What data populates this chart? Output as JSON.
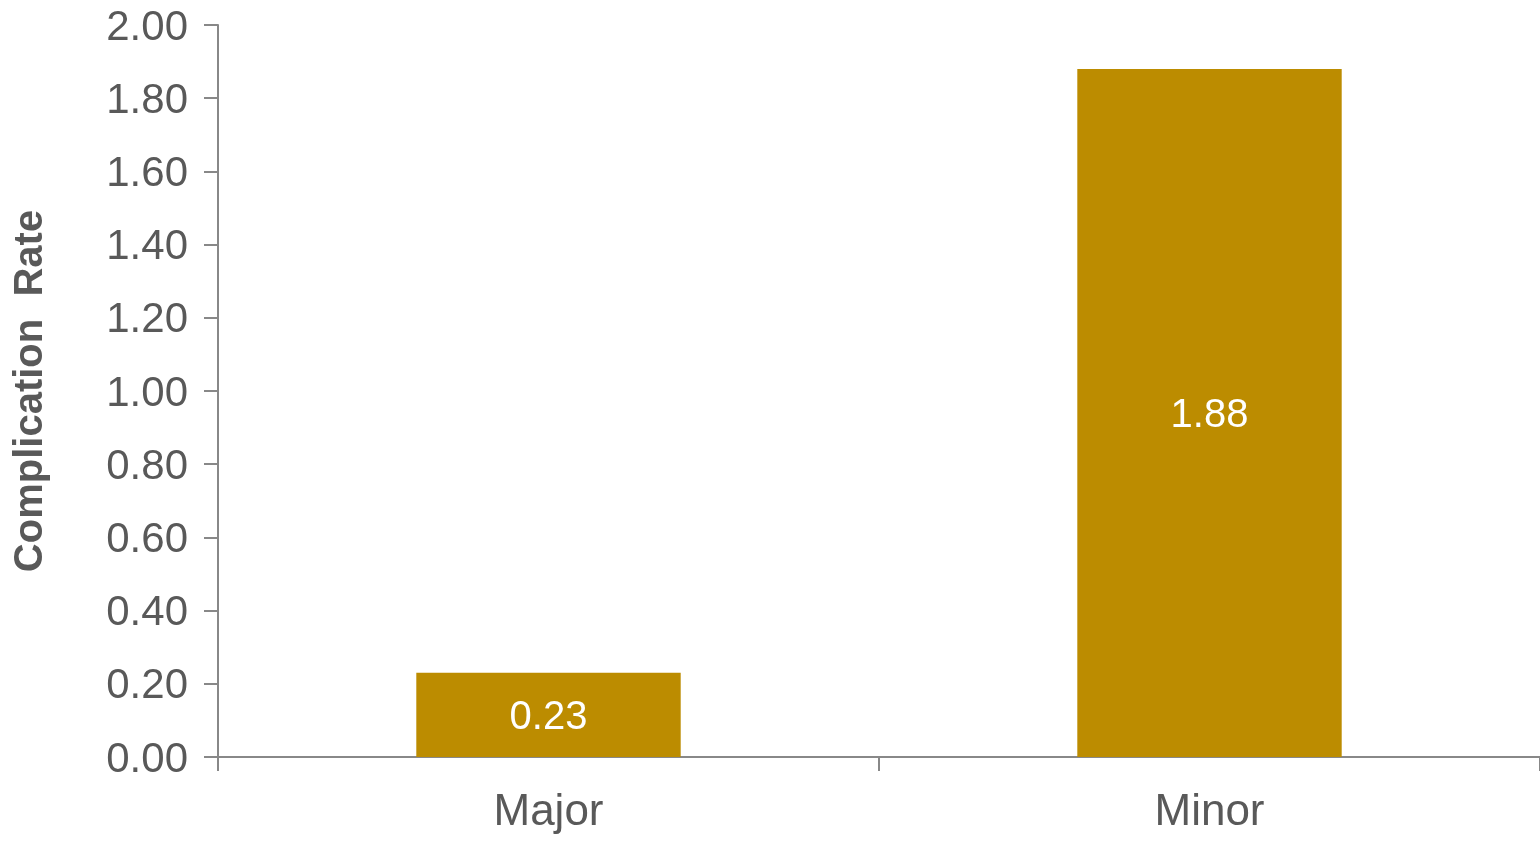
{
  "chart_data": {
    "type": "bar",
    "ylabel": "Complication  Rate",
    "categories": [
      "Major",
      "Minor"
    ],
    "values": [
      0.23,
      1.88
    ],
    "color": "#bc8c00",
    "ylim": [
      0,
      2
    ],
    "yticks": [
      {
        "value": 0,
        "label": "0.00"
      },
      {
        "value": 0.2,
        "label": "0.20"
      },
      {
        "value": 0.4,
        "label": "0.40"
      },
      {
        "value": 0.6,
        "label": "0.60"
      },
      {
        "value": 0.8,
        "label": "0.80"
      },
      {
        "value": 1,
        "label": "1.00"
      },
      {
        "value": 1.2,
        "label": "1.20"
      },
      {
        "value": 1.4,
        "label": "1.40"
      },
      {
        "value": 1.6,
        "label": "1.60"
      },
      {
        "value": 1.8,
        "label": "1.80"
      },
      {
        "value": 2,
        "label": "2.00"
      }
    ],
    "data_labels": true
  }
}
